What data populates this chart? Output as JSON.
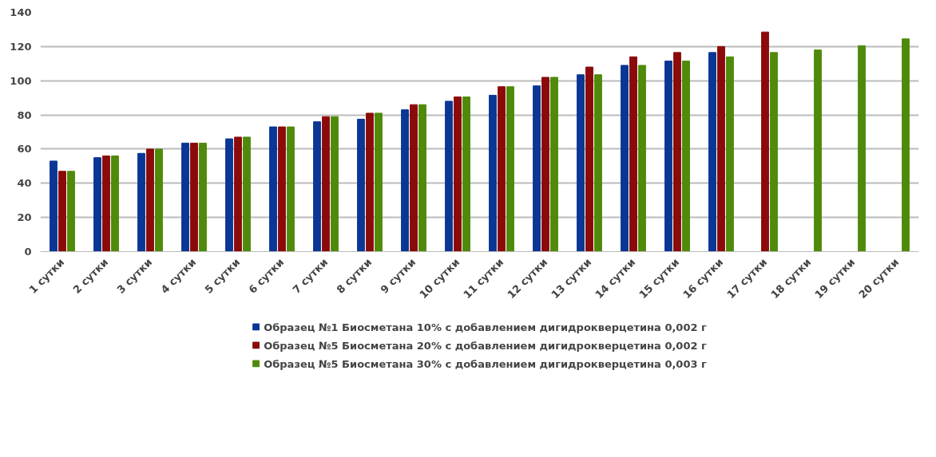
{
  "chart_data": {
    "type": "bar",
    "categories": [
      "1 сутки",
      "2 сутки",
      "3 сутки",
      "4 сутки",
      "5 сутки",
      "6 сутки",
      "7 сутки",
      "8 сутки",
      "9 сутки",
      "10 сутки",
      "11 сутки",
      "12 сутки",
      "13 сутки",
      "14 сутки",
      "15 сутки",
      "16 сутки",
      "17 сутки",
      "18 сутки",
      "19 сутки",
      "20 сутки"
    ],
    "series": [
      {
        "name": "Образец №1 Биосметана 10% с добавлением дигидрокверцетина 0,002 г",
        "color": "#0a3694",
        "values": [
          53,
          55,
          57.5,
          63.5,
          66,
          73,
          76,
          77.5,
          83,
          88,
          91.5,
          97,
          103.5,
          109,
          111.5,
          116.5,
          null,
          null,
          null,
          null
        ]
      },
      {
        "name": "Образец №5 Биосметана 20% с добавлением дигидрокверцетина 0,002 г",
        "color": "#8b0a0a",
        "values": [
          47,
          56,
          60,
          63.5,
          67,
          73,
          79,
          81,
          86,
          90.5,
          96.5,
          102,
          108,
          114,
          116.5,
          120,
          128.5,
          null,
          null,
          null
        ]
      },
      {
        "name": "Образец №5 Биосметана 30% с добавлением дигидрокверцетина 0,003 г",
        "color": "#4f8a0b",
        "values": [
          47,
          56,
          60,
          63.5,
          67,
          73,
          79,
          81,
          86,
          90.5,
          96.5,
          102,
          103.5,
          109,
          111.5,
          114,
          116.5,
          118,
          120.5,
          124.5
        ]
      }
    ],
    "ylim": [
      0,
      140
    ],
    "yticks": [
      0,
      20,
      40,
      60,
      80,
      100,
      120,
      140
    ],
    "grid": "y",
    "legend": "bottom"
  }
}
